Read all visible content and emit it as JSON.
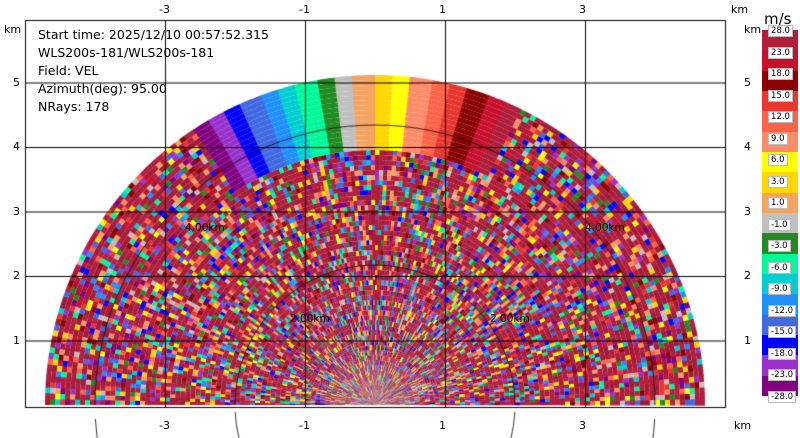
{
  "info": {
    "start_time": "Start time: 2025/12/10 00:57:52.315",
    "device": "WLS200s-181/WLS200s-181",
    "field": "Field: VEL",
    "azimuth": "Azimuth(deg): 95.00",
    "nrays": "NRays: 178"
  },
  "axes": {
    "x_ticks": [
      "-3",
      "-1",
      "1",
      "3"
    ],
    "y_ticks": [
      "1",
      "2",
      "3",
      "4",
      "5"
    ],
    "unit_label": "km",
    "range_ring_labels": [
      "4.00km",
      "4.00km",
      "2.00km",
      "2.00km"
    ]
  },
  "colorbar": {
    "unit": "m/s",
    "labels": [
      "28.0",
      "23.0",
      "18.0",
      "15.0",
      "12.0",
      "9.0",
      "6.0",
      "3.0",
      "1.0",
      "-1.0",
      "-3.0",
      "-6.0",
      "-9.0",
      "-12.0",
      "-15.0",
      "-18.0",
      "-23.0",
      "-28.0"
    ],
    "colors": [
      "#b01e3c",
      "#c8102e",
      "#8b0000",
      "#e8372f",
      "#ff6347",
      "#ff8c69",
      "#ffff00",
      "#ffd700",
      "#f4a460",
      "#c0c0c0",
      "#228b22",
      "#00fa9a",
      "#00ced1",
      "#1e90ff",
      "#4169e1",
      "#0000ff",
      "#9932cc",
      "#800080"
    ]
  }
}
